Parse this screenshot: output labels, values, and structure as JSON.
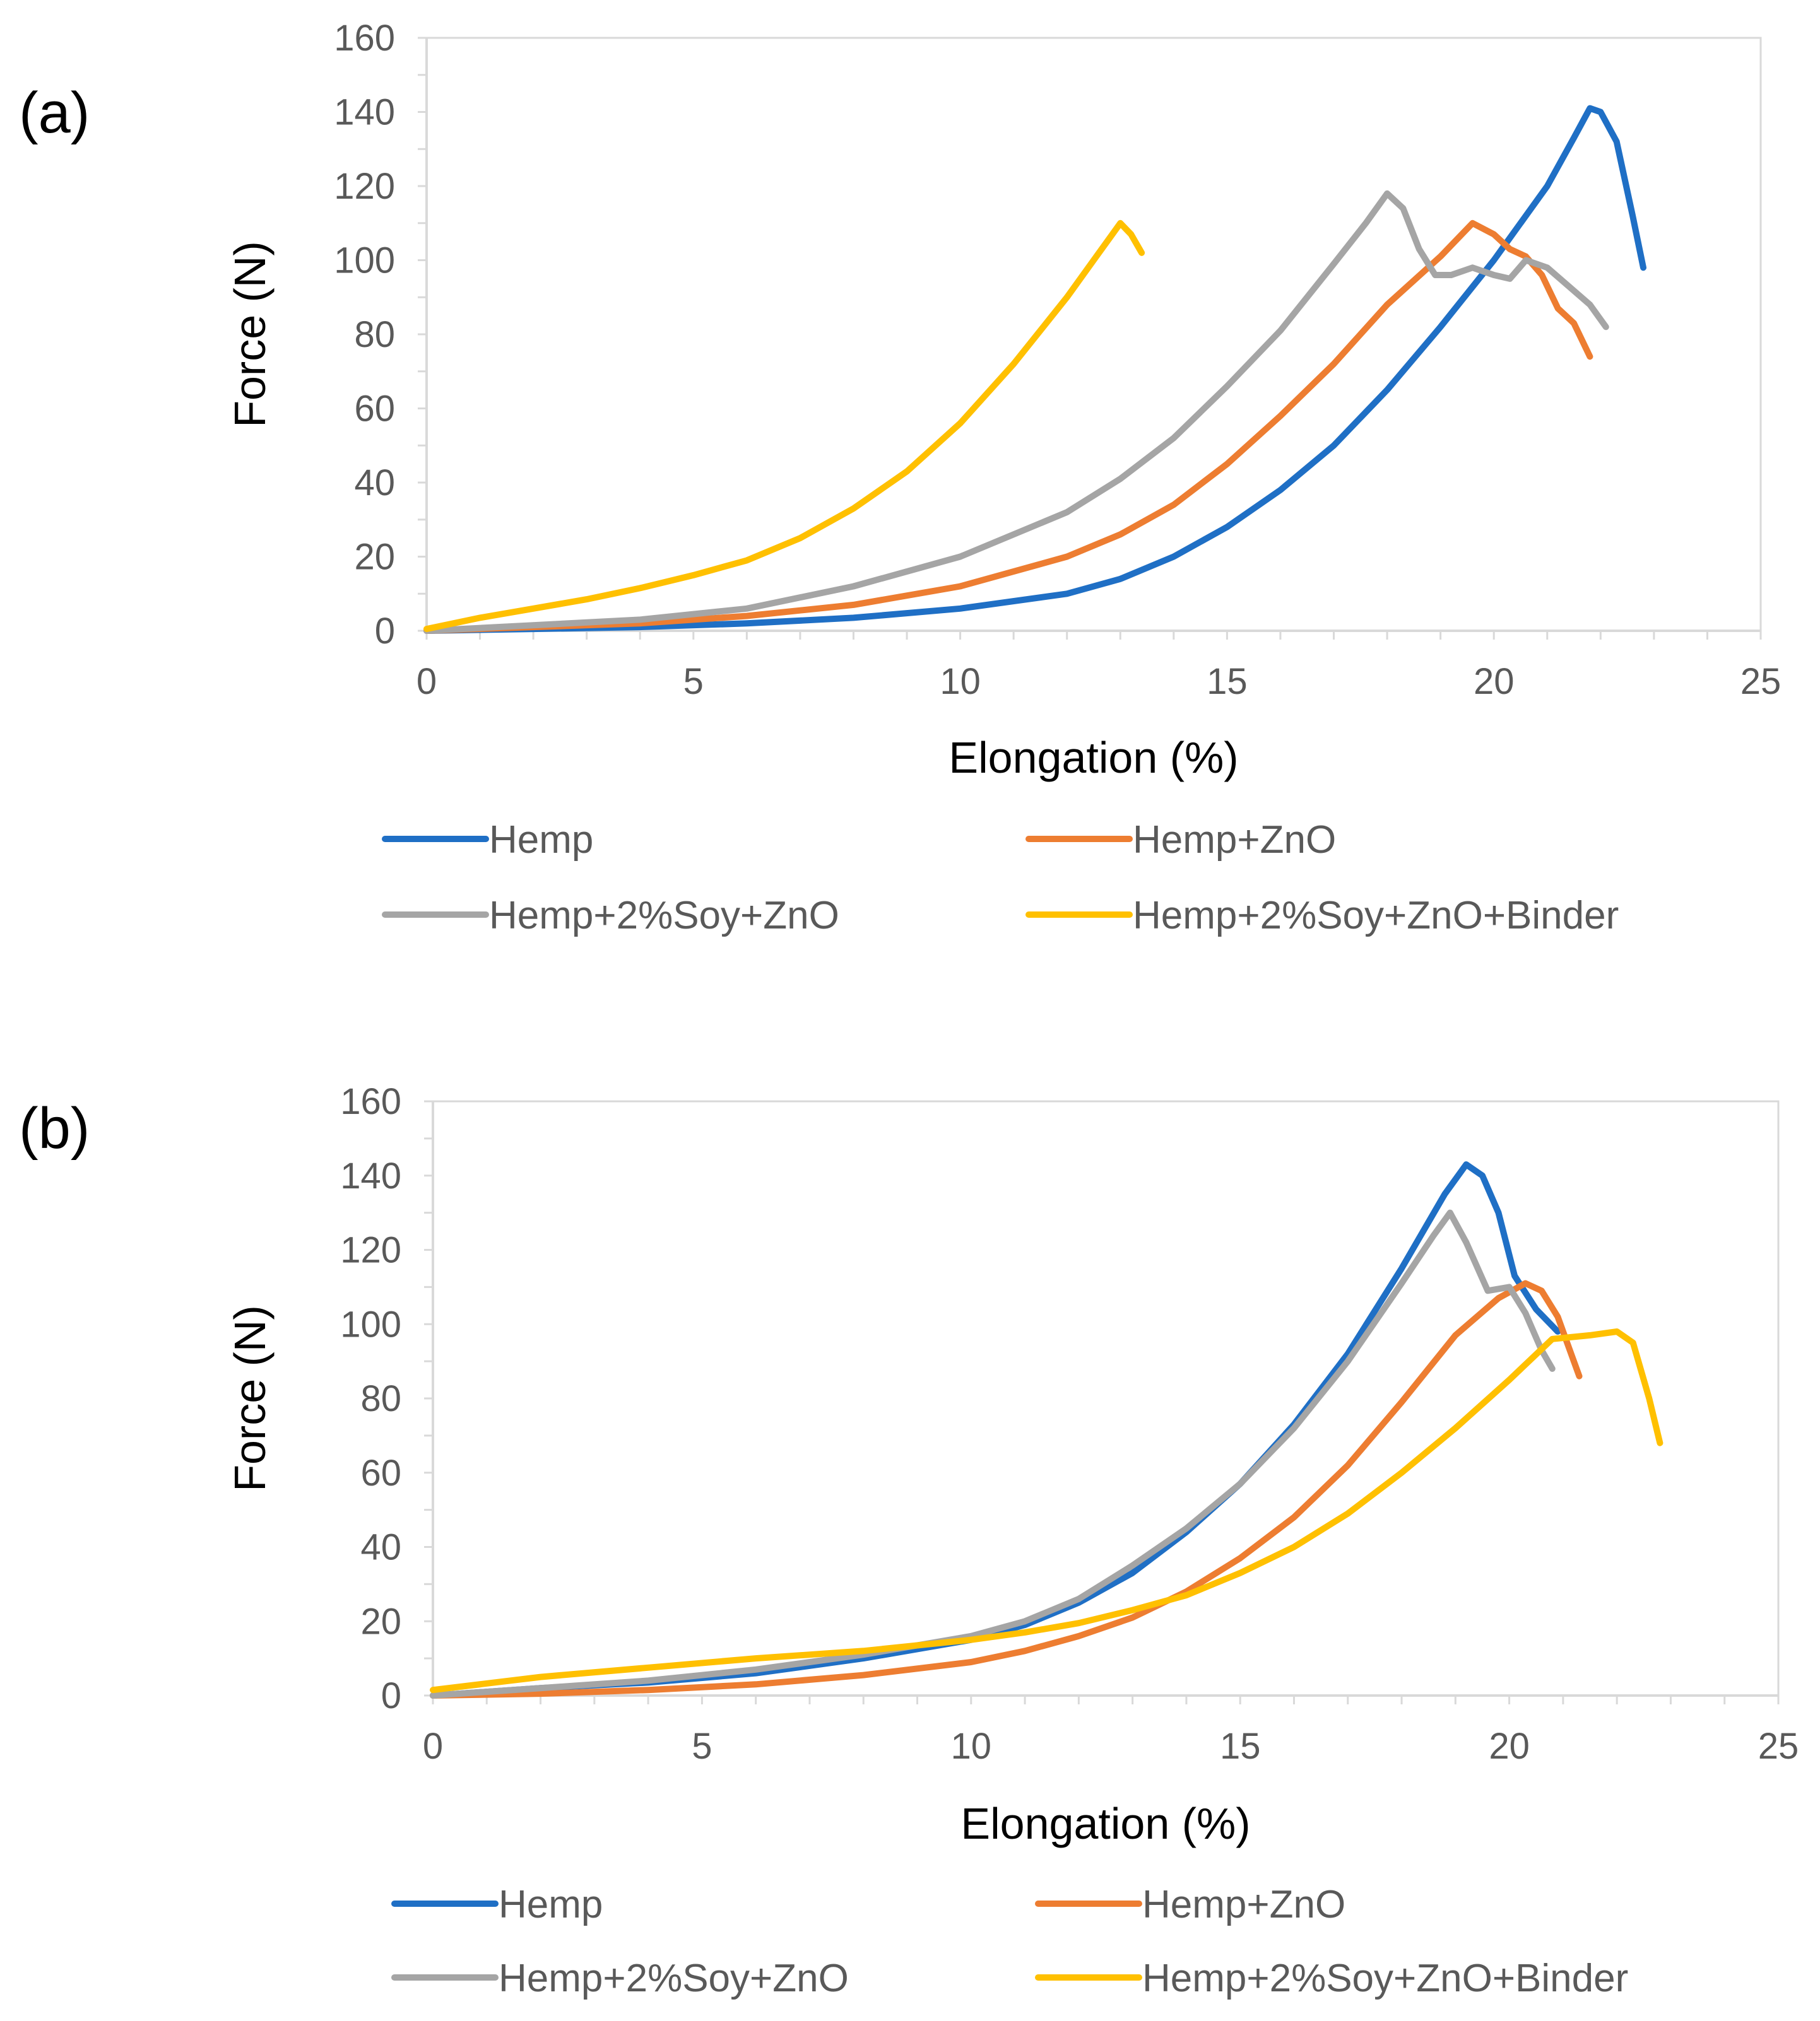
{
  "chart_data": [
    {
      "type": "line",
      "panel_label": "(a)",
      "xlabel": "Elongation (%)",
      "ylabel": "Force (N)",
      "xlim": [
        0,
        25
      ],
      "ylim": [
        0,
        160
      ],
      "xticks": [
        0,
        5,
        10,
        15,
        20,
        25
      ],
      "yticks": [
        0,
        20,
        40,
        60,
        80,
        100,
        120,
        140,
        160
      ],
      "grid": false,
      "legend_position": "bottom",
      "series": [
        {
          "name": "Hemp",
          "color": "#1f6fc5",
          "x": [
            0,
            2,
            4,
            6,
            8,
            10,
            12,
            13,
            14,
            15,
            16,
            17,
            18,
            19,
            20,
            21,
            21.5,
            21.8,
            22,
            22.3,
            22.6,
            22.8
          ],
          "y": [
            0,
            0.5,
            1,
            2,
            3.5,
            6,
            10,
            14,
            20,
            28,
            38,
            50,
            65,
            82,
            100,
            120,
            133,
            141,
            140,
            132,
            112,
            98
          ]
        },
        {
          "name": "Hemp+ZnO",
          "color": "#ed7d31",
          "x": [
            0,
            2,
            4,
            6,
            8,
            10,
            12,
            13,
            14,
            15,
            16,
            17,
            18,
            19,
            19.6,
            20,
            20.3,
            20.6,
            20.9,
            21.2,
            21.5,
            21.8
          ],
          "y": [
            0,
            1,
            2,
            4,
            7,
            12,
            20,
            26,
            34,
            45,
            58,
            72,
            88,
            101,
            110,
            107,
            103,
            101,
            96,
            87,
            83,
            74
          ]
        },
        {
          "name": "Hemp+2%Soy+ZnO",
          "color": "#a5a5a5",
          "x": [
            0,
            2,
            4,
            6,
            8,
            10,
            12,
            13,
            14,
            15,
            16,
            17,
            17.6,
            18,
            18.3,
            18.6,
            18.9,
            19.2,
            19.6,
            20,
            20.3,
            20.6,
            21,
            21.4,
            21.8,
            22.1
          ],
          "y": [
            0,
            1.5,
            3,
            6,
            12,
            20,
            32,
            41,
            52,
            66,
            81,
            99,
            110,
            118,
            114,
            103,
            96,
            96,
            98,
            96,
            95,
            100,
            98,
            93,
            88,
            82
          ]
        },
        {
          "name": "Hemp+2%Soy+ZnO+Binder",
          "color": "#ffc000",
          "x": [
            0,
            1,
            2,
            3,
            4,
            5,
            6,
            7,
            8,
            9,
            10,
            11,
            12,
            12.5,
            12.8,
            13,
            13.2,
            13.4
          ],
          "y": [
            0.5,
            3.5,
            6,
            8.5,
            11.5,
            15,
            19,
            25,
            33,
            43,
            56,
            72,
            90,
            100,
            106,
            110,
            107,
            102
          ]
        }
      ],
      "legend": [
        "Hemp",
        "Hemp+ZnO",
        "Hemp+2%Soy+ZnO",
        "Hemp+2%Soy+ZnO+Binder"
      ]
    },
    {
      "type": "line",
      "panel_label": "(b)",
      "xlabel": "Elongation (%)",
      "ylabel": "Force (N)",
      "xlim": [
        0,
        25
      ],
      "ylim": [
        0,
        160
      ],
      "xticks": [
        0,
        5,
        10,
        15,
        20,
        25
      ],
      "yticks": [
        0,
        20,
        40,
        60,
        80,
        100,
        120,
        140,
        160
      ],
      "grid": false,
      "legend_position": "bottom",
      "series": [
        {
          "name": "Hemp",
          "color": "#1f6fc5",
          "x": [
            0,
            2,
            4,
            6,
            8,
            10,
            11,
            12,
            13,
            14,
            15,
            16,
            17,
            18,
            18.8,
            19.2,
            19.5,
            19.8,
            20.1,
            20.5,
            20.9
          ],
          "y": [
            0,
            2,
            3.5,
            6,
            10,
            15,
            19,
            25,
            33,
            44,
            57,
            73,
            92,
            115,
            135,
            143,
            140,
            130,
            113,
            104,
            98
          ]
        },
        {
          "name": "Hemp+ZnO",
          "color": "#ed7d31",
          "x": [
            0,
            2,
            4,
            6,
            8,
            10,
            11,
            12,
            13,
            14,
            15,
            16,
            17,
            18,
            19,
            19.8,
            20.3,
            20.6,
            20.9,
            21.1,
            21.3
          ],
          "y": [
            0,
            0.5,
            1.5,
            3,
            5.5,
            9,
            12,
            16,
            21,
            28,
            37,
            48,
            62,
            79,
            97,
            107,
            111,
            109,
            102,
            94,
            86
          ]
        },
        {
          "name": "Hemp+2%Soy+ZnO",
          "color": "#a5a5a5",
          "x": [
            0,
            2,
            4,
            6,
            8,
            10,
            11,
            12,
            13,
            14,
            15,
            16,
            17,
            18,
            18.6,
            18.9,
            19.2,
            19.6,
            20,
            20.3,
            20.6,
            20.8
          ],
          "y": [
            0,
            2,
            4,
            7,
            11,
            16,
            20,
            26,
            35,
            45,
            57,
            72,
            90,
            111,
            124,
            130,
            122,
            109,
            110,
            103,
            93,
            88
          ]
        },
        {
          "name": "Hemp+2%Soy+ZnO+Binder",
          "color": "#ffc000",
          "x": [
            0,
            2,
            4,
            6,
            8,
            10,
            11,
            12,
            13,
            14,
            15,
            16,
            17,
            18,
            19,
            20,
            20.8,
            21.5,
            22,
            22.3,
            22.6,
            22.8
          ],
          "y": [
            1.5,
            5,
            7.5,
            10,
            12,
            15,
            17,
            19.5,
            23,
            27,
            33,
            40,
            49,
            60,
            72,
            85,
            96,
            97,
            98,
            95,
            80,
            68
          ]
        }
      ],
      "legend": [
        "Hemp",
        "Hemp+ZnO",
        "Hemp+2%Soy+ZnO",
        "Hemp+2%Soy+ZnO+Binder"
      ]
    }
  ]
}
